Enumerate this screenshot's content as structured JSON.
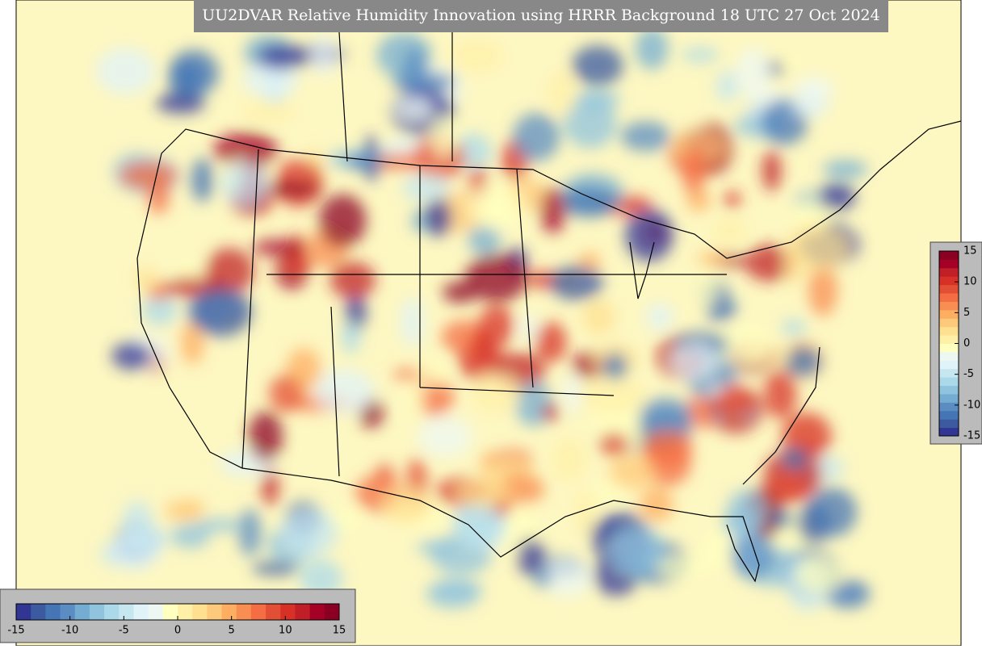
{
  "title": "UU2DVAR Relative Humidity Innovation using HRRR Background 18 UTC 27 Oct 2024",
  "colorbar": {
    "clim": [
      -15,
      15
    ],
    "ticks": [
      -15,
      -10,
      -5,
      0,
      5,
      10,
      15
    ],
    "colors": [
      "#313695",
      "#3b5aa0",
      "#4575b4",
      "#5b8dc3",
      "#74add1",
      "#90c3dd",
      "#abd9e9",
      "#c6e6f0",
      "#e0f3f8",
      "#eef8f3",
      "#ffffbf",
      "#fff0a8",
      "#fee090",
      "#fdc97a",
      "#fdae61",
      "#f88e52",
      "#f46d43",
      "#e34f35",
      "#d73027",
      "#c01f27",
      "#a50026",
      "#8b0022"
    ]
  }
}
